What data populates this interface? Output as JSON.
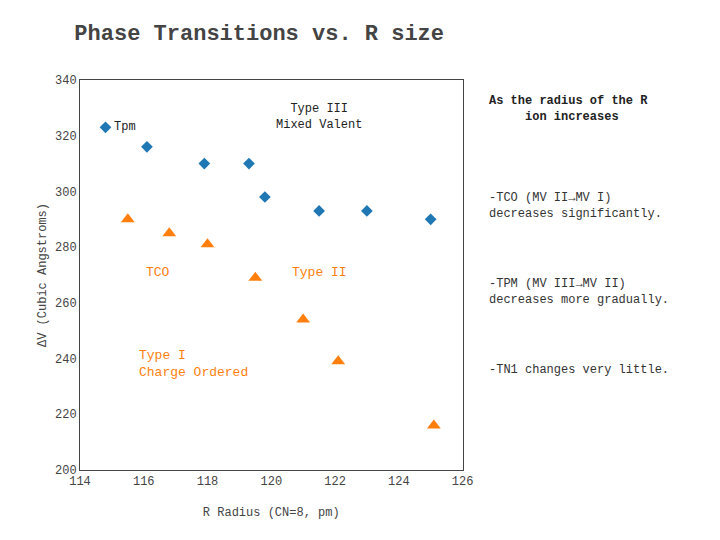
{
  "chart_data": {
    "type": "scatter",
    "title": "Phase Transitions vs. R size",
    "xlabel": "R Radius (CN=8, pm)",
    "ylabel": "ΔV (Cubic Angstroms)",
    "xlim": [
      114,
      126
    ],
    "ylim": [
      200,
      340
    ],
    "xticks": [
      114,
      116,
      118,
      120,
      122,
      124,
      126
    ],
    "yticks": [
      200,
      220,
      240,
      260,
      280,
      300,
      320,
      340
    ],
    "grid": false,
    "series": [
      {
        "x": [
          114.8,
          116.1,
          117.9,
          119.3,
          119.8,
          121.5,
          123.0,
          125.0
        ],
        "values": [
          323,
          316,
          310,
          310,
          298,
          293,
          293,
          290
        ],
        "marker": "diamond"
      },
      {
        "x": [
          115.5,
          116.8,
          118.0,
          119.5,
          121.0,
          122.1,
          125.1
        ],
        "values": [
          290,
          285,
          281,
          269,
          254,
          239,
          216
        ],
        "marker": "triangle"
      }
    ],
    "annotations": [
      "Tpm",
      "Type III\nMixed Valent",
      "TCO",
      "Type II",
      "Type I\nCharge Ordered"
    ],
    "notes_title": "As the radius of the R\n     ion increases",
    "notes": [
      "-TCO (MV II→MV I)\ndecreases significantly.",
      "-TPM (MV III→MV II)\ndecreases more gradually.",
      "-TN1 changes very little."
    ]
  }
}
